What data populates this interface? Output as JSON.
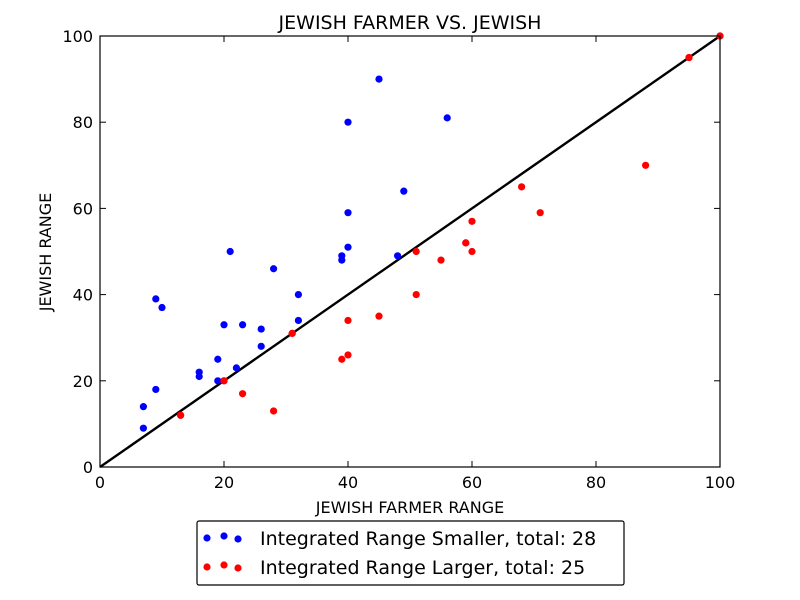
{
  "chart_data": {
    "type": "scatter",
    "title": "JEWISH FARMER VS. JEWISH",
    "xlabel": "JEWISH FARMER RANGE",
    "ylabel": "JEWISH RANGE",
    "xlim": [
      0,
      100
    ],
    "ylim": [
      0,
      100
    ],
    "xticks": [
      0,
      20,
      40,
      60,
      80,
      100
    ],
    "yticks": [
      0,
      20,
      40,
      60,
      80,
      100
    ],
    "grid": false,
    "legend_position": "bottom-center",
    "reference_line": {
      "from": [
        0,
        0
      ],
      "to": [
        100,
        100
      ],
      "color": "#000000"
    },
    "series": [
      {
        "name": "Integrated Range Smaller, total: 28",
        "color": "#0000ff",
        "points": [
          [
            7,
            9
          ],
          [
            7,
            14
          ],
          [
            9,
            18
          ],
          [
            9,
            39
          ],
          [
            10,
            37
          ],
          [
            16,
            21
          ],
          [
            16,
            22
          ],
          [
            19,
            20
          ],
          [
            19,
            25
          ],
          [
            20,
            33
          ],
          [
            21,
            50
          ],
          [
            22,
            23
          ],
          [
            23,
            33
          ],
          [
            26,
            28
          ],
          [
            26,
            32
          ],
          [
            28,
            46
          ],
          [
            32,
            34
          ],
          [
            32,
            40
          ],
          [
            39,
            48
          ],
          [
            39,
            49
          ],
          [
            40,
            51
          ],
          [
            40,
            59
          ],
          [
            40,
            80
          ],
          [
            45,
            90
          ],
          [
            48,
            49
          ],
          [
            49,
            64
          ],
          [
            56,
            81
          ],
          [
            100,
            100
          ]
        ]
      },
      {
        "name": "Integrated Range Larger, total: 25",
        "color": "#ff0000",
        "points": [
          [
            13,
            12
          ],
          [
            20,
            20
          ],
          [
            23,
            17
          ],
          [
            28,
            13
          ],
          [
            31,
            31
          ],
          [
            39,
            25
          ],
          [
            40,
            26
          ],
          [
            40,
            34
          ],
          [
            45,
            35
          ],
          [
            51,
            40
          ],
          [
            51,
            50
          ],
          [
            55,
            48
          ],
          [
            59,
            52
          ],
          [
            60,
            50
          ],
          [
            60,
            57
          ],
          [
            68,
            65
          ],
          [
            71,
            59
          ],
          [
            88,
            70
          ],
          [
            95,
            95
          ],
          [
            20,
            20
          ],
          [
            13,
            12
          ],
          [
            31,
            31
          ],
          [
            95,
            95
          ],
          [
            100,
            100
          ],
          [
            59,
            52
          ]
        ]
      }
    ]
  }
}
